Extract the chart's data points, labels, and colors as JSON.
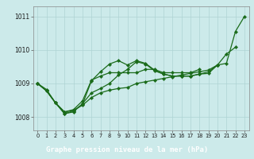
{
  "title": "Graphe pression niveau de la mer (hPa)",
  "xlabel_ticks": [
    0,
    1,
    2,
    3,
    4,
    5,
    6,
    7,
    8,
    9,
    10,
    11,
    12,
    13,
    14,
    15,
    16,
    17,
    18,
    19,
    20,
    21,
    22,
    23
  ],
  "yticks": [
    1008,
    1009,
    1010,
    1011
  ],
  "ylim": [
    1007.6,
    1011.3
  ],
  "xlim": [
    -0.5,
    23.5
  ],
  "background_color": "#cceaea",
  "grid_color": "#aed4d4",
  "line_color": "#1a6b1a",
  "label_bg": "#2a6b2a",
  "label_fg": "#ffffff",
  "lines": [
    [
      1009.0,
      1008.82,
      1008.42,
      1008.15,
      1008.2,
      1008.35,
      1008.58,
      1008.72,
      1008.8,
      1008.85,
      1008.88,
      1009.0,
      1009.05,
      1009.1,
      1009.15,
      1009.2,
      1009.25,
      1009.3,
      1009.35,
      1009.4,
      1009.55,
      1009.6,
      1010.55,
      1011.0
    ],
    [
      1009.0,
      1008.78,
      1008.42,
      1008.1,
      1008.15,
      1008.4,
      1008.72,
      1008.85,
      1009.0,
      1009.25,
      1009.42,
      1009.65,
      1009.58,
      1009.38,
      1009.28,
      1009.22,
      1009.22,
      1009.22,
      1009.28,
      1009.3,
      1009.55,
      1009.88,
      1010.08,
      null
    ],
    [
      1009.0,
      1008.78,
      1008.42,
      1008.1,
      1008.18,
      1008.38,
      1009.08,
      1009.35,
      1009.58,
      1009.68,
      1009.55,
      1009.68,
      1009.6,
      1009.4,
      1009.28,
      1009.22,
      1009.22,
      1009.22,
      1009.28,
      1009.35,
      1009.55,
      null,
      null,
      null
    ],
    [
      1009.0,
      1008.78,
      1008.42,
      1008.15,
      1008.22,
      1008.48,
      1009.1,
      1009.22,
      1009.32,
      1009.32,
      1009.32,
      1009.32,
      1009.42,
      1009.42,
      1009.32,
      1009.32,
      1009.32,
      1009.32,
      1009.42,
      null,
      null,
      null,
      null,
      null
    ]
  ],
  "marker": "D",
  "markersize": 2.2,
  "linewidth": 0.9
}
